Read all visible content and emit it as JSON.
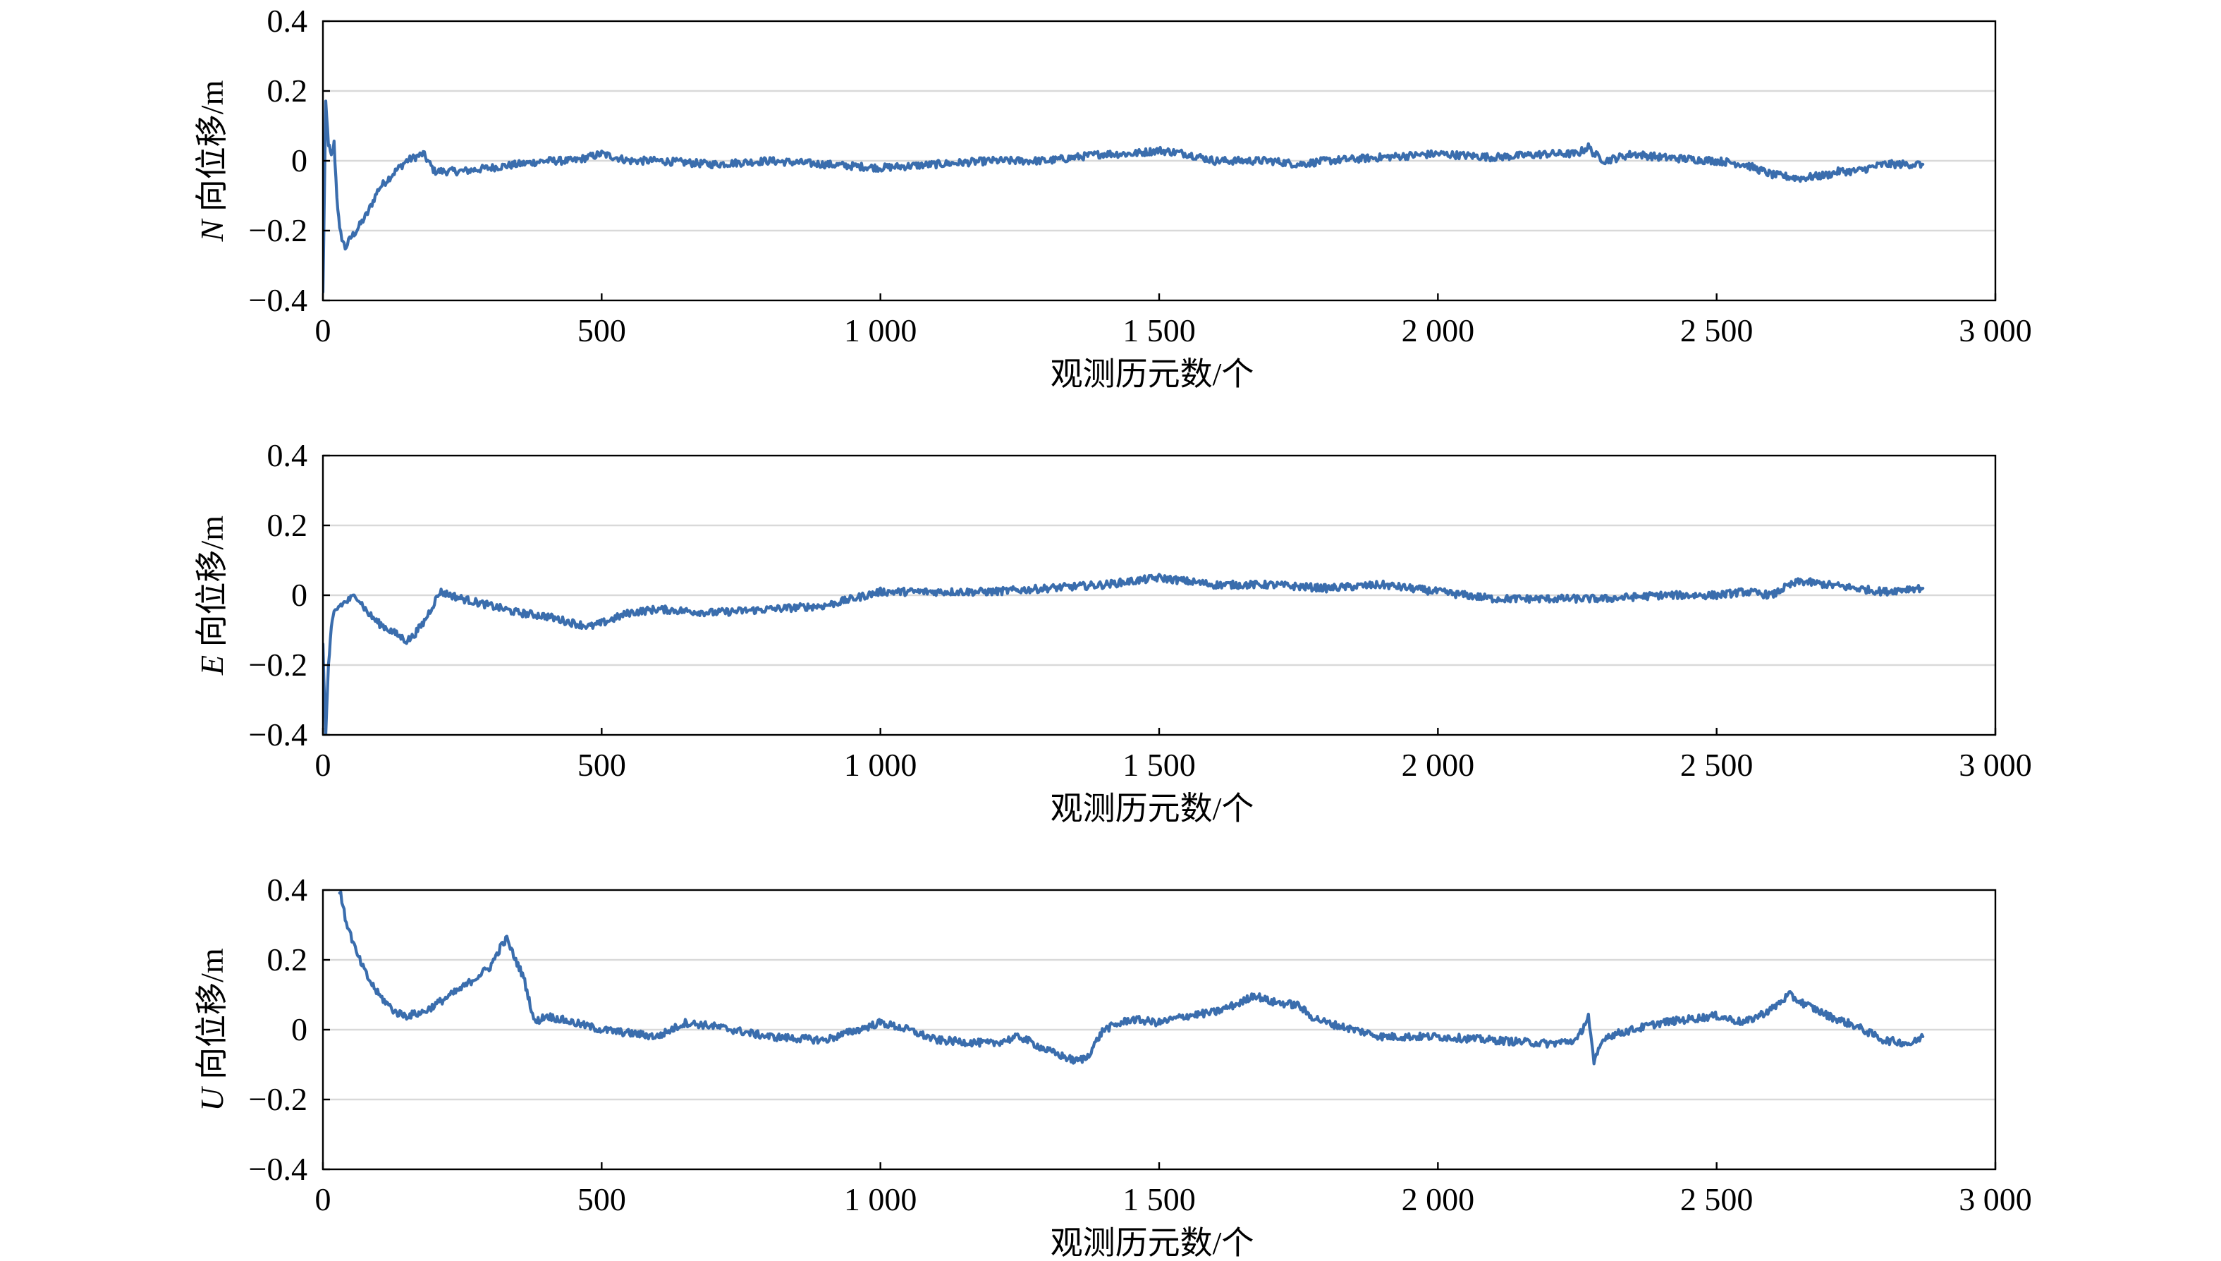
{
  "figure": {
    "colors": {
      "series": "#3a6dad",
      "grid": "#d9d9d9",
      "axis": "#000000"
    }
  },
  "chart_data": [
    {
      "type": "line",
      "id": "N",
      "ylabel": {
        "symbol": "N",
        "text": " 向位移/m"
      },
      "xlabel": "观测历元数/个",
      "xlim": [
        0,
        3000
      ],
      "ylim": [
        -0.4,
        0.4
      ],
      "xticks": [
        0,
        500,
        1000,
        1500,
        2000,
        2500,
        3000
      ],
      "xtick_labels": [
        "0",
        "500",
        "1 000",
        "1 500",
        "2 000",
        "2 500",
        "3 000"
      ],
      "yticks": [
        -0.4,
        -0.2,
        0,
        0.2,
        0.4
      ],
      "ytick_labels": [
        "−0.4",
        "−0.2",
        "0",
        "0.2",
        "0.4"
      ],
      "grid": true,
      "series": [
        {
          "x": [
            0,
            5,
            10,
            15,
            20,
            25,
            30,
            40,
            50,
            60,
            80,
            100,
            130,
            150,
            180,
            200,
            250,
            300,
            350,
            400,
            450,
            500,
            550,
            600,
            700,
            800,
            900,
            1000,
            1100,
            1200,
            1300,
            1400,
            1450,
            1500,
            1550,
            1600,
            1700,
            1750,
            1800,
            1900,
            2000,
            2100,
            2200,
            2250,
            2270,
            2280,
            2300,
            2350,
            2400,
            2500,
            2550,
            2600,
            2650,
            2700,
            2720,
            2750,
            2800,
            2850,
            2870
          ],
          "y": [
            -0.38,
            0.16,
            0.05,
            0.01,
            0.05,
            -0.1,
            -0.2,
            -0.25,
            -0.22,
            -0.2,
            -0.15,
            -0.08,
            -0.03,
            0.0,
            0.02,
            -0.03,
            -0.03,
            -0.02,
            -0.01,
            0.0,
            0.0,
            0.02,
            0.0,
            0.0,
            -0.01,
            0.0,
            -0.01,
            -0.02,
            -0.01,
            0.0,
            0.0,
            0.02,
            0.02,
            0.03,
            0.02,
            0.0,
            0.0,
            -0.01,
            0.0,
            0.01,
            0.02,
            0.01,
            0.02,
            0.02,
            0.04,
            0.02,
            0.0,
            0.02,
            0.01,
            0.0,
            -0.01,
            -0.04,
            -0.05,
            -0.04,
            -0.03,
            -0.03,
            -0.01,
            -0.01,
            -0.01
          ]
        }
      ]
    },
    {
      "type": "line",
      "id": "E",
      "ylabel": {
        "symbol": "E",
        "text": " 向位移/m"
      },
      "xlabel": "观测历元数/个",
      "xlim": [
        0,
        3000
      ],
      "ylim": [
        -0.4,
        0.4
      ],
      "xticks": [
        0,
        500,
        1000,
        1500,
        2000,
        2500,
        3000
      ],
      "xtick_labels": [
        "0",
        "500",
        "1 000",
        "1 500",
        "2 000",
        "2 500",
        "3 000"
      ],
      "yticks": [
        -0.4,
        -0.2,
        0,
        0.2,
        0.4
      ],
      "ytick_labels": [
        "−0.4",
        "−0.2",
        "0",
        "0.2",
        "0.4"
      ],
      "grid": true,
      "series": [
        {
          "x": [
            0,
            5,
            10,
            15,
            20,
            30,
            40,
            50,
            60,
            80,
            100,
            130,
            150,
            160,
            180,
            200,
            210,
            250,
            300,
            350,
            400,
            450,
            480,
            500,
            550,
            600,
            700,
            800,
            900,
            950,
            1000,
            1100,
            1200,
            1300,
            1400,
            1450,
            1500,
            1550,
            1600,
            1700,
            1800,
            1900,
            2000,
            2100,
            2200,
            2300,
            2400,
            2500,
            2550,
            2600,
            2620,
            2650,
            2700,
            2750,
            2800,
            2850,
            2870
          ],
          "y": [
            -0.15,
            -0.4,
            -0.2,
            -0.1,
            -0.05,
            -0.03,
            -0.02,
            -0.01,
            0.0,
            -0.05,
            -0.08,
            -0.11,
            -0.13,
            -0.12,
            -0.08,
            -0.02,
            0.01,
            -0.01,
            -0.03,
            -0.05,
            -0.06,
            -0.08,
            -0.09,
            -0.08,
            -0.05,
            -0.04,
            -0.05,
            -0.04,
            -0.03,
            -0.01,
            0.01,
            0.01,
            0.01,
            0.02,
            0.03,
            0.04,
            0.05,
            0.04,
            0.03,
            0.03,
            0.02,
            0.03,
            0.01,
            -0.01,
            -0.01,
            -0.01,
            0.0,
            0.0,
            0.01,
            0.0,
            0.02,
            0.04,
            0.03,
            0.02,
            0.01,
            0.02,
            0.02
          ]
        }
      ]
    },
    {
      "type": "line",
      "id": "U",
      "ylabel": {
        "symbol": "U",
        "text": " 向位移/m"
      },
      "xlabel": "观测历元数/个",
      "xlim": [
        0,
        3000
      ],
      "ylim": [
        -0.4,
        0.4
      ],
      "xticks": [
        0,
        500,
        1000,
        1500,
        2000,
        2500,
        3000
      ],
      "xtick_labels": [
        "0",
        "500",
        "1 000",
        "1 500",
        "2 000",
        "2 500",
        "3 000"
      ],
      "yticks": [
        -0.4,
        -0.2,
        0,
        0.2,
        0.4
      ],
      "ytick_labels": [
        "−0.4",
        "−0.2",
        "0",
        "0.2",
        "0.4"
      ],
      "grid": true,
      "series": [
        {
          "x": [
            30,
            40,
            60,
            80,
            100,
            130,
            150,
            180,
            200,
            250,
            300,
            320,
            330,
            340,
            360,
            380,
            400,
            450,
            500,
            550,
            600,
            650,
            700,
            800,
            900,
            1000,
            1050,
            1100,
            1200,
            1250,
            1300,
            1350,
            1370,
            1400,
            1450,
            1500,
            1550,
            1600,
            1650,
            1670,
            1700,
            1750,
            1770,
            1800,
            1850,
            1900,
            2000,
            2100,
            2200,
            2250,
            2270,
            2280,
            2290,
            2300,
            2350,
            2400,
            2450,
            2500,
            2550,
            2600,
            2630,
            2650,
            2700,
            2750,
            2800,
            2850,
            2870
          ],
          "y": [
            0.4,
            0.32,
            0.22,
            0.15,
            0.1,
            0.05,
            0.04,
            0.05,
            0.07,
            0.12,
            0.18,
            0.24,
            0.26,
            0.22,
            0.15,
            0.02,
            0.04,
            0.02,
            0.0,
            -0.01,
            -0.02,
            0.02,
            0.01,
            -0.02,
            -0.03,
            0.02,
            0.0,
            -0.03,
            -0.04,
            -0.02,
            -0.06,
            -0.09,
            -0.08,
            0.0,
            0.03,
            0.02,
            0.04,
            0.05,
            0.08,
            0.1,
            0.08,
            0.07,
            0.04,
            0.02,
            0.0,
            -0.02,
            -0.02,
            -0.03,
            -0.04,
            -0.03,
            0.04,
            -0.1,
            -0.05,
            -0.02,
            0.0,
            0.02,
            0.03,
            0.04,
            0.02,
            0.06,
            0.1,
            0.08,
            0.04,
            0.01,
            -0.03,
            -0.04,
            -0.02
          ]
        }
      ]
    }
  ]
}
